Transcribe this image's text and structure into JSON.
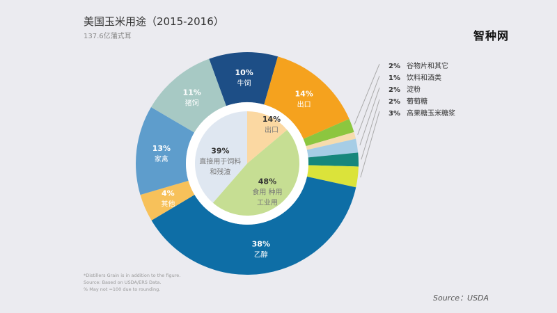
{
  "chart_data": {
    "type": "pie",
    "title": "美国玉米用途（2015-2016）",
    "subtitle": "137.6亿蒲式耳",
    "outer_ring": [
      {
        "label": "牛饲",
        "value": 10,
        "pct": "10%",
        "color": "#1d4e86"
      },
      {
        "label": "出口",
        "value": 14,
        "pct": "14%",
        "color": "#f5a21e"
      },
      {
        "label": "谷物片和其它",
        "value": 2,
        "pct": "2%",
        "color": "#8cc63f"
      },
      {
        "label": "饮料和酒类",
        "value": 1,
        "pct": "1%",
        "color": "#f6dcae"
      },
      {
        "label": "淀粉",
        "value": 2,
        "pct": "2%",
        "color": "#a6cde6"
      },
      {
        "label": "葡萄糖",
        "value": 2,
        "pct": "2%",
        "color": "#16877c"
      },
      {
        "label": "高果糖玉米糖浆",
        "value": 3,
        "pct": "3%",
        "color": "#dbe33a"
      },
      {
        "label": "乙醇",
        "value": 38,
        "pct": "38%",
        "color": "#0e6ea6"
      },
      {
        "label": "其他",
        "value": 4,
        "pct": "4%",
        "color": "#f7c15a"
      },
      {
        "label": "家禽",
        "value": 13,
        "pct": "13%",
        "color": "#5e9dcc"
      },
      {
        "label": "猪饲",
        "value": 11,
        "pct": "11%",
        "color": "#a7c9c4"
      }
    ],
    "inner_pie": [
      {
        "label": "出口",
        "value": 14,
        "pct": "14%",
        "color": "#fbd8a2"
      },
      {
        "label": "食用 种用 工业用",
        "value": 48,
        "pct": "48%",
        "color": "#c6de93"
      },
      {
        "label": "直接用于饲料和残渣",
        "value": 39,
        "pct": "39%",
        "color": "#dfe7f1"
      }
    ]
  },
  "logo": "智种网",
  "footnote": [
    "*Distillers Grain is in addition to the figure.",
    "Source: Based on USDA/ERS Data.",
    "% May not =100 due to rounding."
  ],
  "source": "Source：USDA"
}
